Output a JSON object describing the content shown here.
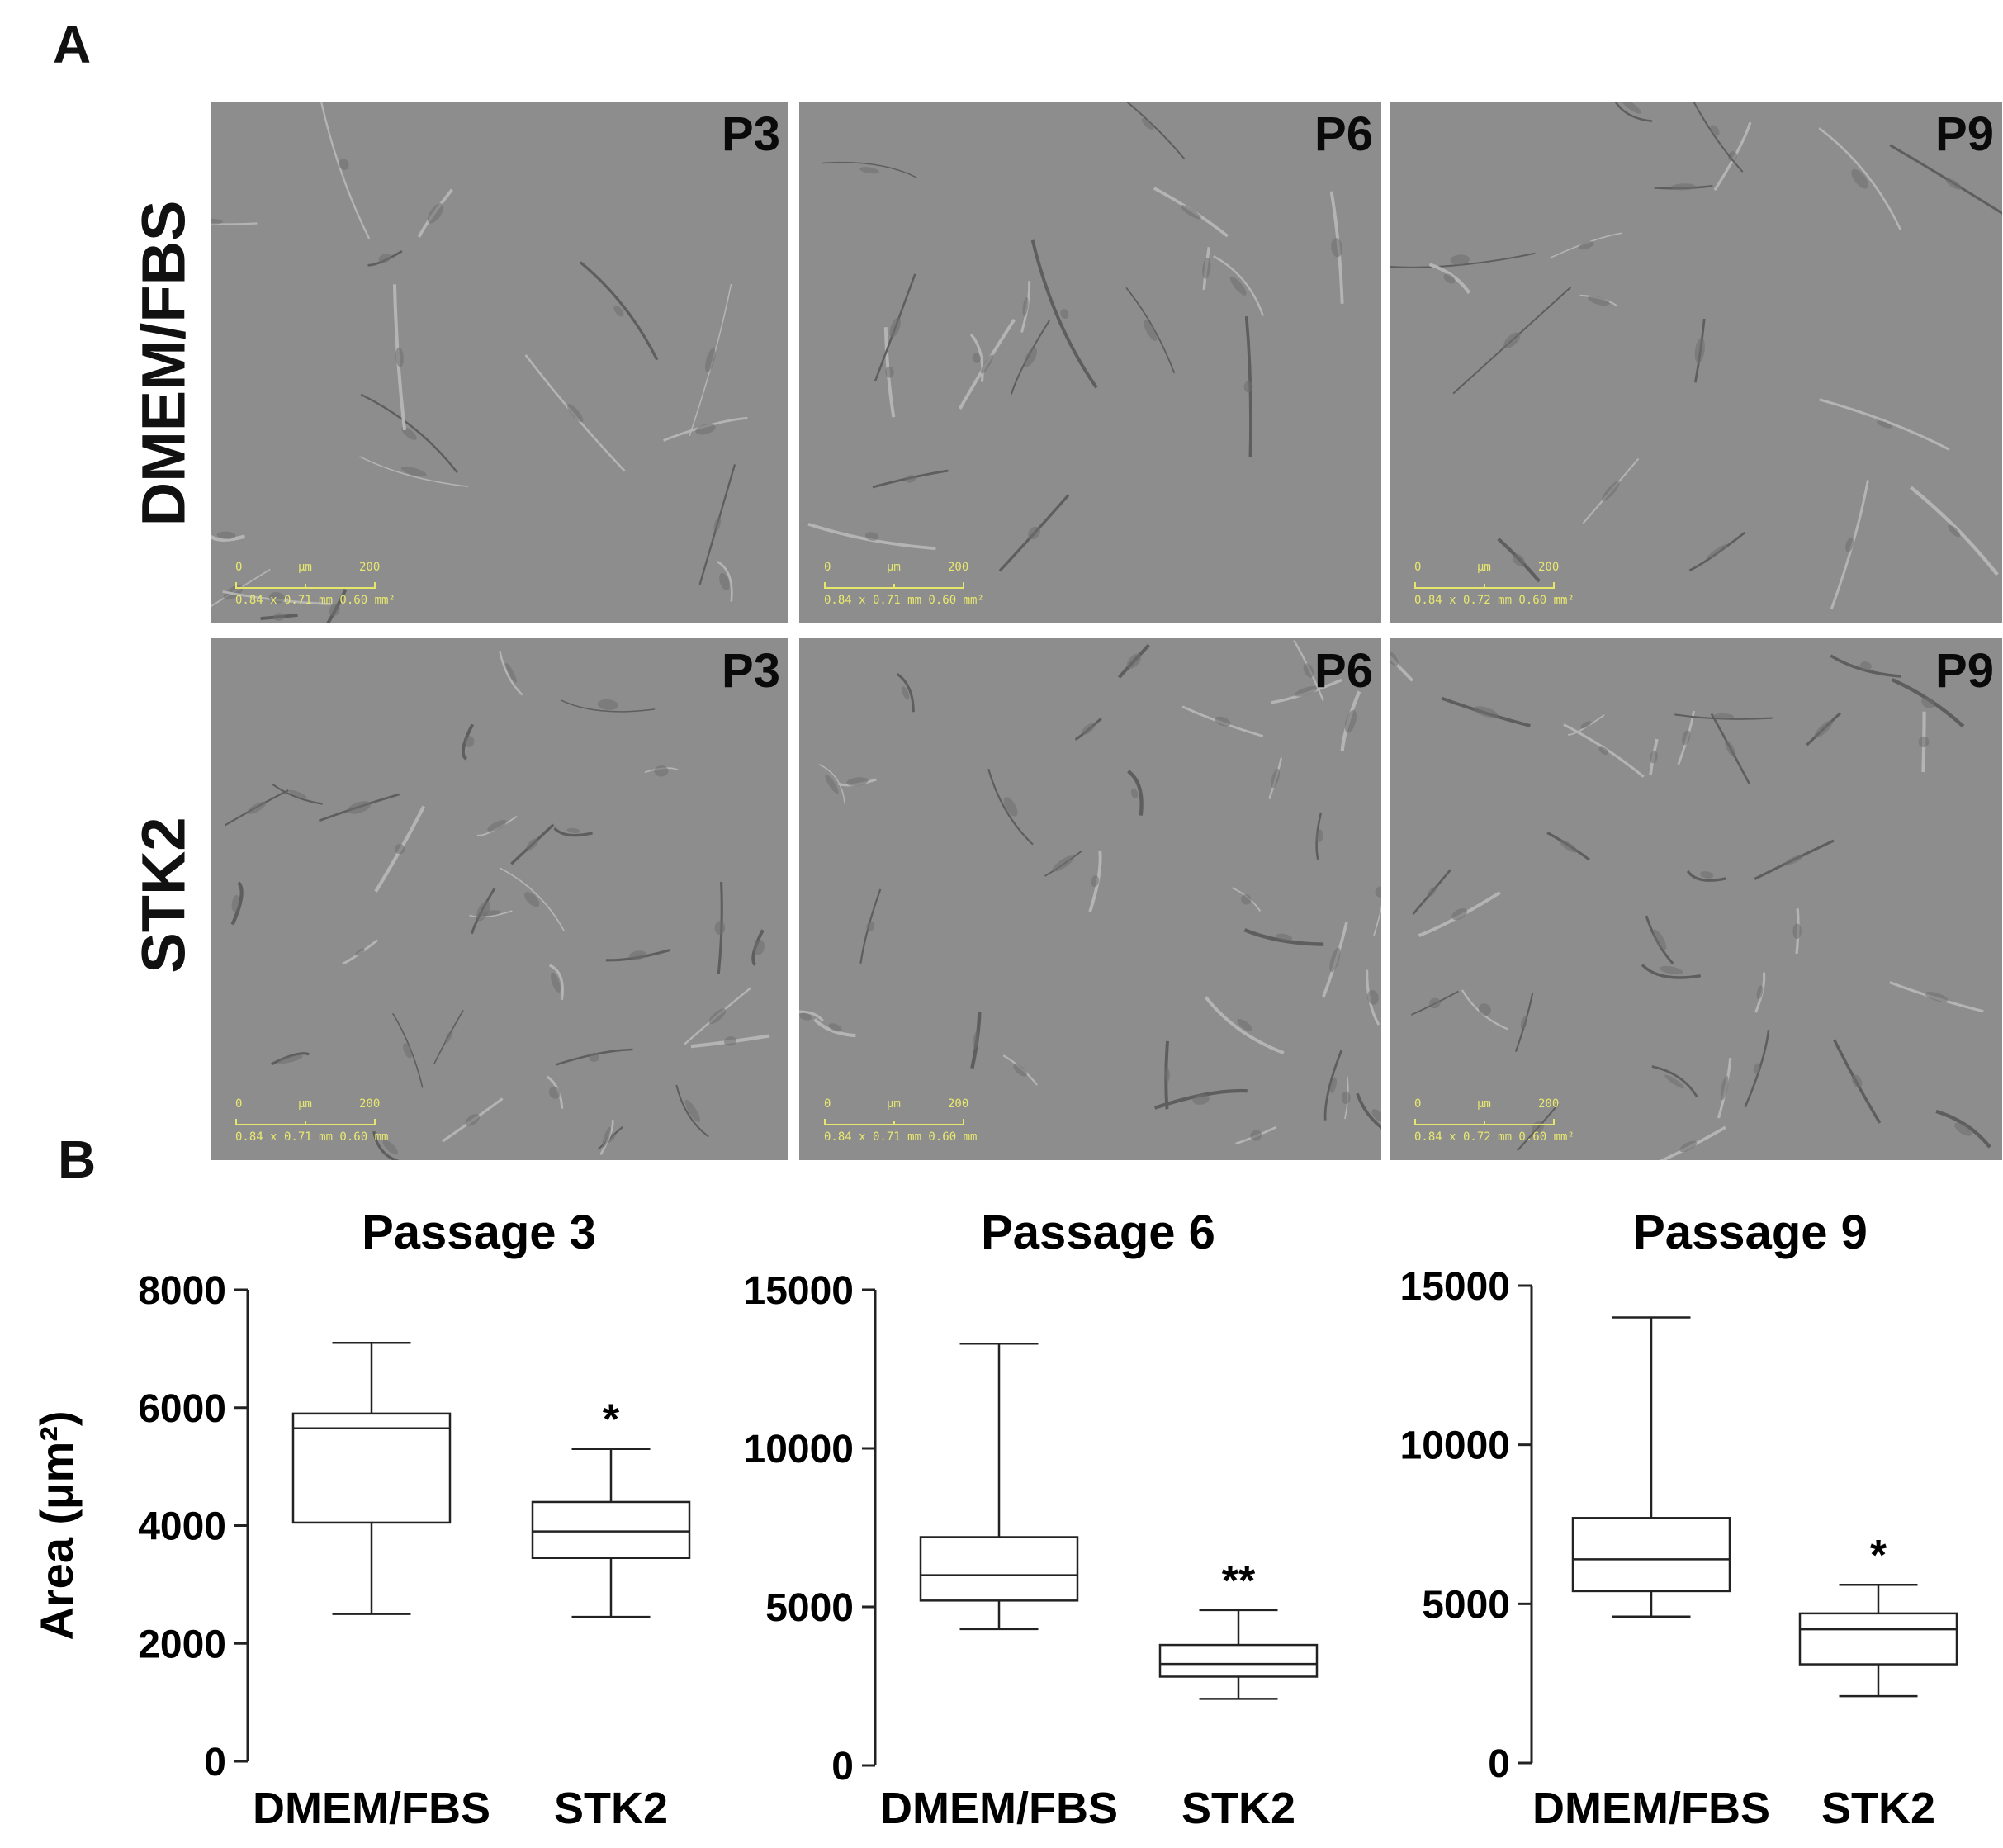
{
  "panel_a": {
    "letter": "A",
    "rows": [
      "DMEM/FBS",
      "STK2"
    ],
    "images": [
      {
        "row": 0,
        "col": 0,
        "passage_label": "P3",
        "scale": {
          "min": "0",
          "unit": "µm",
          "max": "200"
        },
        "field": "0.84 x 0.71 mm  0.60 mm²"
      },
      {
        "row": 0,
        "col": 1,
        "passage_label": "P6",
        "scale": {
          "min": "0",
          "unit": "µm",
          "max": "200"
        },
        "field": "0.84 x 0.71 mm  0.60 mm²"
      },
      {
        "row": 0,
        "col": 2,
        "passage_label": "P9",
        "scale": {
          "min": "0",
          "unit": "µm",
          "max": "200"
        },
        "field": "0.84 x 0.72 mm  0.60 mm²"
      },
      {
        "row": 1,
        "col": 0,
        "passage_label": "P3",
        "scale": {
          "min": "0",
          "unit": "µm",
          "max": "200"
        },
        "field": "0.84 x 0.71 mm  0.60 mm"
      },
      {
        "row": 1,
        "col": 1,
        "passage_label": "P6",
        "scale": {
          "min": "0",
          "unit": "µm",
          "max": "200"
        },
        "field": "0.84 x 0.71 mm  0.60 mm"
      },
      {
        "row": 1,
        "col": 2,
        "passage_label": "P9",
        "scale": {
          "min": "0",
          "unit": "µm",
          "max": "200"
        },
        "field": "0.84 x 0.72 mm  0.60 mm²"
      }
    ]
  },
  "panel_b": {
    "letter": "B",
    "ylabel": "Area (µm²)"
  },
  "chart_data": [
    {
      "type": "box",
      "title": "Passage 3",
      "ylabel": "Area (µm²)",
      "ylim": [
        0,
        8000
      ],
      "yticks": [
        0,
        2000,
        4000,
        6000,
        8000
      ],
      "categories": [
        "DMEM/FBS",
        "STK2"
      ],
      "boxes": [
        {
          "min": 2500,
          "q1": 4050,
          "median": 5650,
          "q3": 5900,
          "max": 7100,
          "annotation": ""
        },
        {
          "min": 2450,
          "q1": 3450,
          "median": 3900,
          "q3": 4400,
          "max": 5300,
          "annotation": "*"
        }
      ]
    },
    {
      "type": "box",
      "title": "Passage 6",
      "ylabel": "",
      "ylim": [
        0,
        15000
      ],
      "yticks": [
        0,
        5000,
        10000,
        15000
      ],
      "categories": [
        "DMEM/FBS",
        "STK2"
      ],
      "boxes": [
        {
          "min": 4300,
          "q1": 5200,
          "median": 6000,
          "q3": 7200,
          "max": 13300,
          "annotation": ""
        },
        {
          "min": 2100,
          "q1": 2800,
          "median": 3200,
          "q3": 3800,
          "max": 4900,
          "annotation": "**"
        }
      ]
    },
    {
      "type": "box",
      "title": "Passage 9",
      "ylabel": "",
      "ylim": [
        0,
        15000
      ],
      "yticks": [
        0,
        5000,
        10000,
        15000
      ],
      "categories": [
        "DMEM/FBS",
        "STK2"
      ],
      "boxes": [
        {
          "min": 4600,
          "q1": 5400,
          "median": 6400,
          "q3": 7700,
          "max": 14000,
          "annotation": ""
        },
        {
          "min": 2100,
          "q1": 3100,
          "median": 4200,
          "q3": 4700,
          "max": 5600,
          "annotation": "*"
        }
      ]
    }
  ]
}
